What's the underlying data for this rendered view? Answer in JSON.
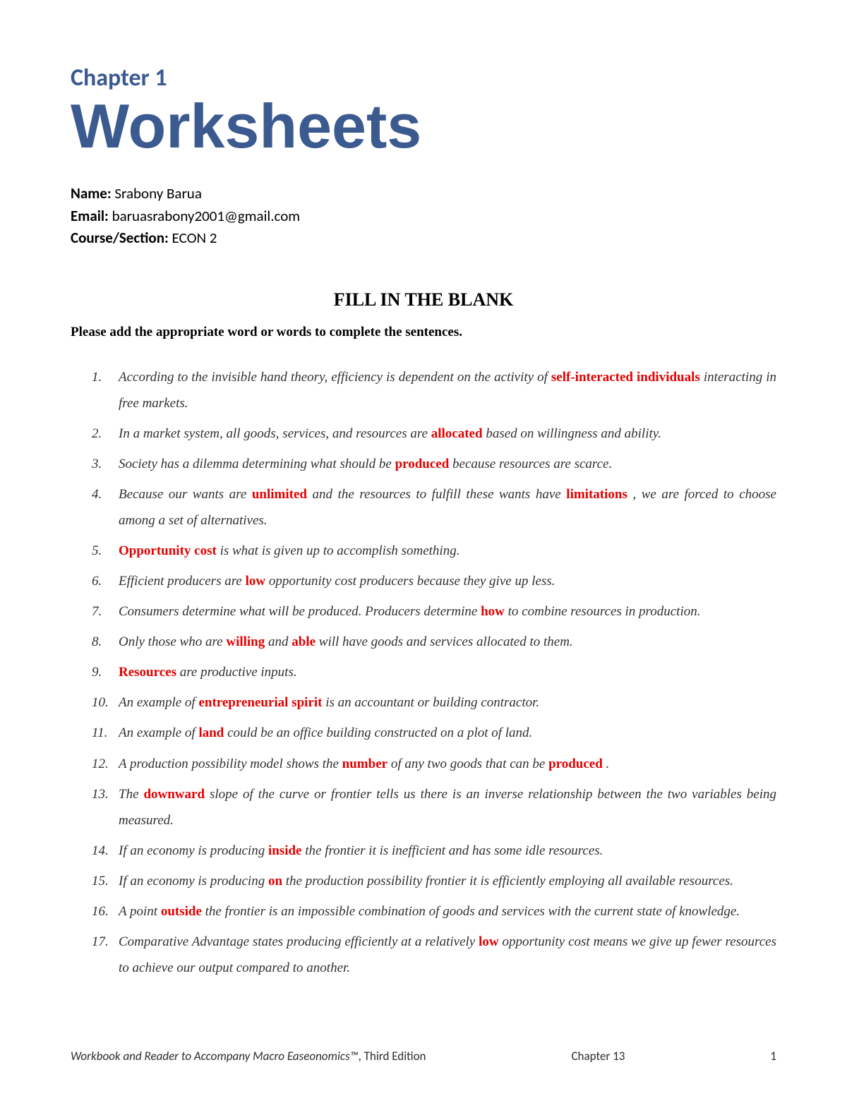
{
  "header": {
    "chapter_label": "Chapter 1",
    "title": "Worksheets"
  },
  "student": {
    "name_label": "Name",
    "name_value": "Srabony Barua",
    "email_label": "Email",
    "email_value": "baruasrabony2001@gmail.com",
    "course_label": "Course/Section",
    "course_value": "ECON 2"
  },
  "section": {
    "heading": "FILL IN THE BLANK",
    "instructions": "Please add the appropriate word or words to complete the sentences."
  },
  "questions": [
    {
      "pre": "According to the invisible hand theory, efficiency is dependent on the activity of ",
      "ans1": "self-interacted individuals",
      "mid1": " interacting in free markets."
    },
    {
      "pre": "In a market system, all goods, services, and resources are ",
      "ans1": "allocated",
      "mid1": "  based on willingness and ability."
    },
    {
      "pre": "Society has a dilemma determining what should be ",
      "ans1": "produced",
      "mid1": "  because resources are scarce."
    },
    {
      "pre": "Because our wants are ",
      "ans1": "unlimited",
      "mid1": " and the resources to fulfill these wants have ",
      "ans2": "limitations",
      "mid2": " , we are forced to choose among a set of alternatives."
    },
    {
      "pre": "",
      "ans1": "Opportunity cost",
      "mid1": " is what is given up to accomplish something."
    },
    {
      "pre": "Efficient producers are ",
      "ans1": "low",
      "mid1": " opportunity cost producers because they give up less."
    },
    {
      "pre": "Consumers determine what will be produced. Producers determine ",
      "ans1": "how",
      "mid1": " to combine resources in production."
    },
    {
      "pre": "Only those who are ",
      "ans1": "willing",
      "mid1": " and  ",
      "ans2": "able",
      "mid2": " will have goods and services allocated to them."
    },
    {
      "pre": " ",
      "ans1": "Resources",
      "mid1": " are productive inputs."
    },
    {
      "pre": "An example of ",
      "ans1": "entrepreneurial spirit",
      "mid1": " is an accountant or building contractor."
    },
    {
      "pre": "An example of  ",
      "ans1": "land",
      "mid1": " could be an office building constructed on a plot of land."
    },
    {
      "pre": "A production possibility model shows the ",
      "ans1": "number",
      "mid1": " of any two goods that can be ",
      "ans2": "produced",
      "mid2": " ."
    },
    {
      "pre": "The ",
      "ans1": "downward",
      "mid1": " slope of the curve or frontier tells us there is an inverse relationship between the two variables being measured."
    },
    {
      "pre": "If an economy is producing ",
      "ans1": "inside",
      "mid1": " the frontier it is inefficient and has some idle resources."
    },
    {
      "pre": "If an economy is producing ",
      "ans1": "on",
      "mid1": " the production possibility frontier it is efficiently employing all available resources."
    },
    {
      "pre": "A point ",
      "ans1": "outside",
      "mid1": " the frontier is an impossible combination of goods and services with the current state of knowledge."
    },
    {
      "pre": "Comparative Advantage states producing efficiently at a relatively ",
      "ans1": "low",
      "mid1": " opportunity cost means we give up fewer resources to achieve our output compared to another."
    }
  ],
  "footer": {
    "book_title": "Workbook and Reader to Accompany Macro Easeonomics™",
    "edition": ", Third Edition",
    "chapter_ref": "Chapter 13",
    "page_number": "1"
  },
  "colors": {
    "heading_blue": "#3b5a8f",
    "answer_red": "#e30000",
    "body_text": "#303030"
  }
}
